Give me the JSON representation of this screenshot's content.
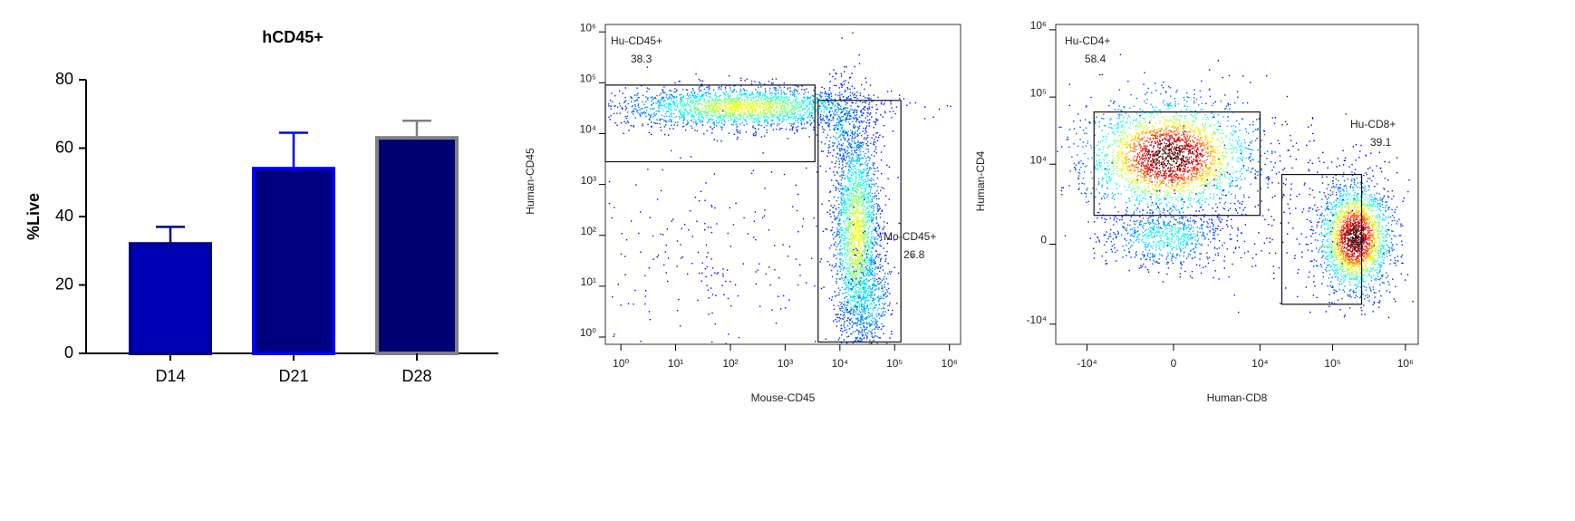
{
  "chart_data": [
    {
      "type": "bar",
      "title": "hCD45+",
      "y_label": "%Live",
      "categories": [
        "D14",
        "D21",
        "D28"
      ],
      "values": [
        32,
        54,
        63
      ],
      "errors": [
        5,
        10.5,
        5
      ],
      "colors": [
        "#0000b4",
        "#000080",
        "#000070"
      ],
      "edge_colors": [
        "#00008b",
        "#0000ff",
        "#808080"
      ],
      "ylim": [
        0,
        80
      ],
      "yticks": [
        0,
        20,
        40,
        60,
        80
      ]
    },
    {
      "type": "flow",
      "x_label": "Mouse-CD45",
      "y_label": "Human-CD45",
      "xscale": "log",
      "yscale": "log",
      "xlim": [
        0.52,
        1600000
      ],
      "ylim": [
        0.72,
        1400000
      ],
      "xticks": [
        {
          "value": 1,
          "label": "10⁰"
        },
        {
          "value": 10,
          "label": "10¹"
        },
        {
          "value": 100,
          "label": "10²"
        },
        {
          "value": 1000,
          "label": "10³"
        },
        {
          "value": 10000,
          "label": "10⁴"
        },
        {
          "value": 100000,
          "label": "10⁵"
        },
        {
          "value": 1000000,
          "label": "10⁶"
        }
      ],
      "yticks": [
        {
          "value": 1,
          "label": "10⁰"
        },
        {
          "value": 10,
          "label": "10¹"
        },
        {
          "value": 100,
          "label": "10²"
        },
        {
          "value": 1000,
          "label": "10³"
        },
        {
          "value": 10000,
          "label": "10⁴"
        },
        {
          "value": 100000,
          "label": "10⁵"
        },
        {
          "value": 1000000,
          "label": "10⁶"
        }
      ],
      "gates": [
        {
          "name": "Hu-CD45+",
          "value": 38.3,
          "x": [
            0.52,
            3500
          ],
          "y": [
            2800,
            90000
          ]
        },
        {
          "name": "Mo-CD45+",
          "value": 26.8,
          "x": [
            4000,
            130000
          ],
          "y": [
            0.8,
            45000
          ]
        }
      ]
    },
    {
      "type": "flow",
      "x_label": "Human-CD8",
      "y_label": "Human-CD4",
      "xscale": "biex",
      "yscale": "biex",
      "xlim": [
        -27000,
        1500000
      ],
      "ylim": [
        -20000,
        1200000
      ],
      "xticks": [
        {
          "value": -10000,
          "label": "-10⁴"
        },
        0,
        {
          "value": 10000,
          "label": "10⁴"
        },
        {
          "value": 100000,
          "label": "10⁵"
        },
        {
          "value": 1000000,
          "label": "10⁶"
        }
      ],
      "yticks": [
        {
          "value": -10000,
          "label": "-10⁴"
        },
        0,
        {
          "value": 10000,
          "label": "10⁴"
        },
        {
          "value": 100000,
          "label": "10⁵"
        },
        {
          "value": 1000000,
          "label": "10⁶"
        }
      ],
      "gates": [
        {
          "name": "Hu-CD4+",
          "value": 58.4,
          "x": [
            -8000,
            10000
          ],
          "y": [
            1500,
            60000
          ]
        },
        {
          "name": "Hu-CD8+",
          "value": 39.1,
          "x": [
            20000,
            250000
          ],
          "y": [
            -5000,
            7000
          ]
        }
      ]
    }
  ]
}
